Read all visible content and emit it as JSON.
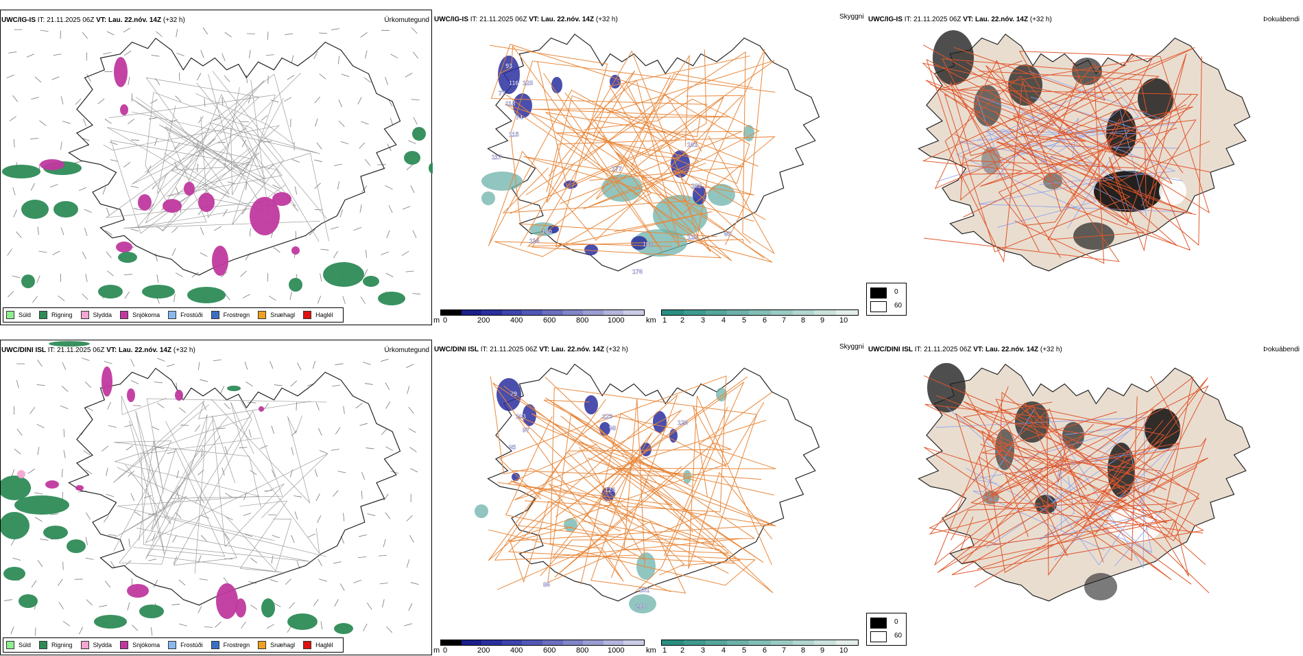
{
  "rows": [
    {
      "model": "UWC/IG-IS",
      "it_label": "IT:",
      "it_value": "21.11.2025 06Z",
      "vt_label": "VT:",
      "vt_value": "Lau. 22.nóv. 14Z",
      "lead": "(+32 h)"
    },
    {
      "model": "UWC/DINI ISL",
      "it_label": "IT:",
      "it_value": "21.11.2025 06Z",
      "vt_label": "VT:",
      "vt_value": "Lau. 22.nóv. 14Z",
      "lead": "(+32 h)"
    }
  ],
  "panel_titles": {
    "precip": "Úrkomutegund",
    "visibility": "Skyggni",
    "fog": "Þokuábendi"
  },
  "precip_legend": [
    {
      "label": "Súld",
      "color": "#90ee90"
    },
    {
      "label": "Rigning",
      "color": "#2e8b57"
    },
    {
      "label": "Slydda",
      "color": "#f4a6d0"
    },
    {
      "label": "Snjókoma",
      "color": "#c0399f"
    },
    {
      "label": "Frostúði",
      "color": "#8ab8ee"
    },
    {
      "label": "Frostregn",
      "color": "#3a6fc4"
    },
    {
      "label": "Snæhagl",
      "color": "#f0a020"
    },
    {
      "label": "Haglél",
      "color": "#e01010"
    }
  ],
  "visibility_legend": {
    "m": {
      "unit": "m",
      "ticks": [
        "0",
        "200",
        "400",
        "600",
        "800",
        "1000"
      ],
      "colors": [
        "#000000",
        "#1b1f8a",
        "#2a2f9e",
        "#3d44ab",
        "#5258b6",
        "#6a6fc0",
        "#8286c9",
        "#9a9dd3",
        "#b3b5dd",
        "#cbcde7"
      ]
    },
    "km": {
      "unit": "km",
      "ticks": [
        "1",
        "2",
        "3",
        "4",
        "5",
        "6",
        "7",
        "8",
        "9",
        "10"
      ],
      "colors": [
        "#2a8e82",
        "#3f9a8f",
        "#55a69c",
        "#6cb2a9",
        "#83beb6",
        "#9bcac3",
        "#b3d6d0",
        "#cbe2dd",
        "#e3eeeb"
      ]
    }
  },
  "fog_legend": [
    {
      "label": "0",
      "color": "#000000"
    },
    {
      "label": "60",
      "color": "#ffffff"
    }
  ],
  "vis_labels": [
    [
      "93",
      "116",
      "123",
      "77",
      "118",
      "74",
      "115",
      "117",
      "161",
      "102",
      "65",
      "160",
      "114",
      "161",
      "176",
      "129",
      "177"
    ],
    [
      "79",
      "103",
      "97",
      "95",
      "123",
      "98",
      "126",
      "86",
      "201",
      "200",
      "124"
    ]
  ]
}
